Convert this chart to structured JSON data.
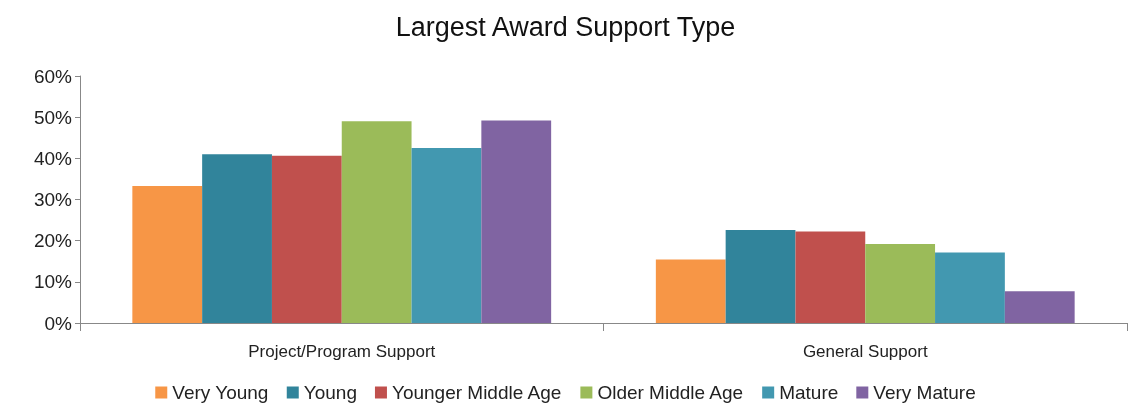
{
  "chart_data": {
    "type": "bar",
    "title": "Largest Award Support Type",
    "categories": [
      "Project/Program Support",
      "General Support"
    ],
    "series": [
      {
        "name": "Very Young",
        "color": "#f79646",
        "values": [
          33.3,
          15.4
        ]
      },
      {
        "name": "Young",
        "color": "#31849b",
        "values": [
          41.0,
          22.6
        ]
      },
      {
        "name": "Younger Middle Age",
        "color": "#c0504d",
        "values": [
          40.6,
          22.2
        ]
      },
      {
        "name": "Older Middle Age",
        "color": "#9bbb59",
        "values": [
          49.0,
          19.2
        ]
      },
      {
        "name": "Mature",
        "color": "#4298b0",
        "values": [
          42.5,
          17.1
        ]
      },
      {
        "name": "Very Mature",
        "color": "#8064a2",
        "values": [
          49.2,
          7.7
        ]
      }
    ],
    "ylim": [
      0,
      60
    ],
    "yticks": [
      {
        "value": 0,
        "label": "0%"
      },
      {
        "value": 10,
        "label": "10%"
      },
      {
        "value": 20,
        "label": "20%"
      },
      {
        "value": 30,
        "label": "30%"
      },
      {
        "value": 40,
        "label": "40%"
      },
      {
        "value": 50,
        "label": "50%"
      },
      {
        "value": 60,
        "label": "60%"
      }
    ],
    "grid": false,
    "legend": "bottom"
  }
}
